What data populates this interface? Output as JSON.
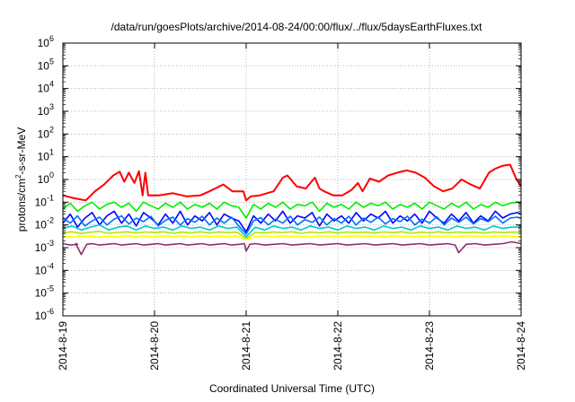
{
  "chart_data": {
    "type": "line",
    "title": "/data/run/goesPlots/archive/2014-08-24/00:00/flux/../flux/5daysEarthFluxes.txt",
    "xlabel": "Coordinated Universal Time (UTC)",
    "ylabel": {
      "pre": "protons/cm",
      "sup": "2",
      "post": "-s-sr-MeV"
    },
    "yscale": "log",
    "ylim": [
      1e-06,
      1000000.0
    ],
    "y_ticks": [
      {
        "exp": "-6"
      },
      {
        "exp": "-5"
      },
      {
        "exp": "-4"
      },
      {
        "exp": "-3"
      },
      {
        "exp": "-2"
      },
      {
        "exp": "-1"
      },
      {
        "exp": "0"
      },
      {
        "exp": "1"
      },
      {
        "exp": "2"
      },
      {
        "exp": "3"
      },
      {
        "exp": "4"
      },
      {
        "exp": "5"
      },
      {
        "exp": "6"
      }
    ],
    "tick_base": "10",
    "x_ticks": [
      "2014-8-19",
      "2014-8-20",
      "2014-8-21",
      "2014-8-22",
      "2014-8-23",
      "2014-8-24"
    ],
    "xlim": [
      "2014-08-19 00:00",
      "2014-08-24 00:00"
    ],
    "grid": true,
    "legend": "none",
    "series": [
      {
        "color": "#ff0000",
        "x_days": [
          0,
          0.12,
          0.25,
          0.35,
          0.45,
          0.55,
          0.62,
          0.67,
          0.72,
          0.78,
          0.83,
          0.87,
          0.9,
          0.93,
          0.97,
          1.05,
          1.2,
          1.35,
          1.5,
          1.6,
          1.75,
          1.85,
          1.97,
          2.0,
          2.05,
          2.15,
          2.3,
          2.4,
          2.45,
          2.55,
          2.65,
          2.75,
          2.8,
          2.85,
          2.95,
          3.05,
          3.15,
          3.22,
          3.27,
          3.35,
          3.45,
          3.55,
          3.65,
          3.75,
          3.85,
          3.95,
          4.05,
          4.15,
          4.25,
          4.35,
          4.45,
          4.55,
          4.65,
          4.72,
          4.8,
          4.88,
          4.95,
          5.0
        ],
        "y": [
          0.2,
          0.15,
          0.12,
          0.3,
          0.6,
          1.5,
          2.2,
          0.8,
          2.0,
          0.7,
          2.3,
          0.2,
          2.0,
          0.2,
          0.2,
          0.2,
          0.25,
          0.18,
          0.2,
          0.3,
          0.6,
          0.3,
          0.3,
          0.12,
          0.18,
          0.2,
          0.3,
          1.2,
          1.5,
          0.5,
          0.4,
          1.2,
          0.4,
          0.3,
          0.2,
          0.2,
          0.35,
          0.7,
          0.3,
          1.1,
          0.8,
          1.5,
          2.0,
          2.5,
          2.0,
          1.2,
          0.5,
          0.3,
          0.4,
          1.0,
          0.6,
          0.4,
          2.0,
          3.0,
          4.0,
          4.5,
          1.0,
          0.5
        ]
      },
      {
        "color": "#00ee00",
        "x_days": [
          0,
          0.08,
          0.16,
          0.24,
          0.32,
          0.4,
          0.48,
          0.56,
          0.64,
          0.72,
          0.8,
          0.88,
          0.96,
          1.04,
          1.12,
          1.2,
          1.28,
          1.36,
          1.44,
          1.52,
          1.6,
          1.68,
          1.76,
          1.84,
          1.92,
          2.0,
          2.08,
          2.16,
          2.24,
          2.32,
          2.4,
          2.48,
          2.56,
          2.64,
          2.72,
          2.8,
          2.88,
          2.96,
          3.04,
          3.12,
          3.2,
          3.28,
          3.36,
          3.44,
          3.52,
          3.6,
          3.68,
          3.76,
          3.84,
          3.92,
          4.0,
          4.08,
          4.16,
          4.24,
          4.32,
          4.4,
          4.48,
          4.56,
          4.64,
          4.72,
          4.8,
          4.88,
          4.96,
          5.0
        ],
        "y": [
          0.05,
          0.09,
          0.04,
          0.07,
          0.1,
          0.05,
          0.08,
          0.1,
          0.06,
          0.09,
          0.04,
          0.1,
          0.07,
          0.05,
          0.09,
          0.06,
          0.1,
          0.05,
          0.08,
          0.06,
          0.09,
          0.05,
          0.1,
          0.07,
          0.06,
          0.02,
          0.08,
          0.05,
          0.09,
          0.06,
          0.1,
          0.05,
          0.08,
          0.07,
          0.1,
          0.04,
          0.09,
          0.06,
          0.08,
          0.05,
          0.1,
          0.06,
          0.09,
          0.07,
          0.1,
          0.05,
          0.08,
          0.06,
          0.09,
          0.05,
          0.1,
          0.07,
          0.05,
          0.09,
          0.06,
          0.1,
          0.05,
          0.08,
          0.06,
          0.1,
          0.07,
          0.09,
          0.1,
          0.1
        ]
      },
      {
        "color": "#0000ff",
        "x_days": [
          0,
          0.08,
          0.16,
          0.24,
          0.32,
          0.4,
          0.48,
          0.56,
          0.64,
          0.72,
          0.8,
          0.88,
          0.96,
          1.04,
          1.12,
          1.2,
          1.28,
          1.36,
          1.44,
          1.52,
          1.6,
          1.68,
          1.76,
          1.84,
          1.92,
          2.0,
          2.08,
          2.16,
          2.24,
          2.32,
          2.4,
          2.48,
          2.56,
          2.64,
          2.72,
          2.8,
          2.88,
          2.96,
          3.04,
          3.12,
          3.2,
          3.28,
          3.36,
          3.44,
          3.52,
          3.6,
          3.68,
          3.76,
          3.84,
          3.92,
          4.0,
          4.08,
          4.16,
          4.24,
          4.32,
          4.4,
          4.48,
          4.56,
          4.64,
          4.72,
          4.8,
          4.88,
          4.96,
          5.0
        ],
        "y": [
          0.012,
          0.03,
          0.008,
          0.02,
          0.035,
          0.01,
          0.025,
          0.04,
          0.012,
          0.03,
          0.009,
          0.035,
          0.02,
          0.01,
          0.03,
          0.012,
          0.04,
          0.01,
          0.025,
          0.015,
          0.035,
          0.01,
          0.03,
          0.02,
          0.015,
          0.005,
          0.025,
          0.012,
          0.03,
          0.015,
          0.04,
          0.012,
          0.025,
          0.02,
          0.035,
          0.009,
          0.03,
          0.015,
          0.025,
          0.012,
          0.035,
          0.015,
          0.03,
          0.02,
          0.04,
          0.012,
          0.025,
          0.015,
          0.03,
          0.012,
          0.04,
          0.02,
          0.012,
          0.03,
          0.015,
          0.035,
          0.012,
          0.025,
          0.015,
          0.04,
          0.02,
          0.03,
          0.035,
          0.03
        ]
      },
      {
        "color": "#0070ff",
        "x_days": [
          0,
          0.08,
          0.16,
          0.24,
          0.32,
          0.4,
          0.48,
          0.56,
          0.64,
          0.72,
          0.8,
          0.88,
          0.96,
          1.04,
          1.12,
          1.2,
          1.28,
          1.36,
          1.44,
          1.52,
          1.6,
          1.68,
          1.76,
          1.84,
          1.92,
          2.0,
          2.08,
          2.16,
          2.24,
          2.32,
          2.4,
          2.48,
          2.56,
          2.64,
          2.72,
          2.8,
          2.88,
          2.96,
          3.04,
          3.12,
          3.2,
          3.28,
          3.36,
          3.44,
          3.52,
          3.6,
          3.68,
          3.76,
          3.84,
          3.92,
          4.0,
          4.08,
          4.16,
          4.24,
          4.32,
          4.4,
          4.48,
          4.56,
          4.64,
          4.72,
          4.8,
          4.88,
          4.96,
          5.0
        ],
        "y": [
          0.02,
          0.012,
          0.025,
          0.009,
          0.015,
          0.022,
          0.01,
          0.018,
          0.025,
          0.011,
          0.02,
          0.014,
          0.024,
          0.009,
          0.016,
          0.022,
          0.01,
          0.019,
          0.013,
          0.024,
          0.01,
          0.02,
          0.012,
          0.022,
          0.009,
          0.004,
          0.015,
          0.021,
          0.01,
          0.018,
          0.012,
          0.024,
          0.01,
          0.017,
          0.013,
          0.022,
          0.01,
          0.019,
          0.012,
          0.024,
          0.01,
          0.02,
          0.013,
          0.022,
          0.011,
          0.019,
          0.014,
          0.024,
          0.01,
          0.018,
          0.012,
          0.023,
          0.01,
          0.02,
          0.013,
          0.022,
          0.011,
          0.019,
          0.014,
          0.024,
          0.012,
          0.02,
          0.022,
          0.02
        ]
      },
      {
        "color": "#00c8c8",
        "x_days": [
          0,
          0.1,
          0.2,
          0.3,
          0.4,
          0.5,
          0.6,
          0.7,
          0.8,
          0.9,
          1.0,
          1.1,
          1.2,
          1.3,
          1.4,
          1.5,
          1.6,
          1.7,
          1.8,
          1.9,
          2.0,
          2.1,
          2.2,
          2.3,
          2.4,
          2.5,
          2.6,
          2.7,
          2.8,
          2.9,
          3.0,
          3.1,
          3.2,
          3.3,
          3.4,
          3.5,
          3.6,
          3.7,
          3.8,
          3.9,
          4.0,
          4.1,
          4.2,
          4.3,
          4.4,
          4.5,
          4.6,
          4.7,
          4.8,
          4.9,
          5.0
        ],
        "y": [
          0.007,
          0.009,
          0.006,
          0.008,
          0.01,
          0.006,
          0.008,
          0.009,
          0.006,
          0.009,
          0.007,
          0.008,
          0.006,
          0.009,
          0.007,
          0.008,
          0.006,
          0.009,
          0.007,
          0.008,
          0.003,
          0.008,
          0.006,
          0.009,
          0.007,
          0.008,
          0.006,
          0.009,
          0.007,
          0.008,
          0.006,
          0.009,
          0.007,
          0.008,
          0.006,
          0.009,
          0.007,
          0.008,
          0.006,
          0.009,
          0.007,
          0.008,
          0.006,
          0.009,
          0.007,
          0.008,
          0.006,
          0.009,
          0.007,
          0.008,
          0.008
        ]
      },
      {
        "color": "#b4e600",
        "x_days": [
          0,
          0.1,
          0.2,
          0.3,
          0.4,
          0.5,
          0.6,
          0.7,
          0.8,
          0.9,
          1.0,
          1.1,
          1.2,
          1.3,
          1.4,
          1.5,
          1.6,
          1.7,
          1.8,
          1.9,
          2.0,
          2.1,
          2.2,
          2.3,
          2.4,
          2.5,
          2.6,
          2.7,
          2.8,
          2.9,
          3.0,
          3.1,
          3.2,
          3.3,
          3.4,
          3.5,
          3.6,
          3.7,
          3.8,
          3.9,
          4.0,
          4.1,
          4.2,
          4.3,
          4.4,
          4.5,
          4.6,
          4.7,
          4.8,
          4.9,
          5.0
        ],
        "y": [
          0.0045,
          0.005,
          0.0042,
          0.0048,
          0.0052,
          0.0043,
          0.0047,
          0.005,
          0.0044,
          0.0049,
          0.0046,
          0.005,
          0.0043,
          0.0048,
          0.0045,
          0.005,
          0.0044,
          0.0049,
          0.0046,
          0.0048,
          0.0025,
          0.0047,
          0.0044,
          0.0049,
          0.0046,
          0.005,
          0.0043,
          0.0048,
          0.0045,
          0.005,
          0.0044,
          0.0049,
          0.0046,
          0.0048,
          0.0044,
          0.0049,
          0.0046,
          0.005,
          0.0043,
          0.0048,
          0.0045,
          0.005,
          0.0044,
          0.0049,
          0.0046,
          0.0048,
          0.0044,
          0.0049,
          0.0046,
          0.0048,
          0.0048
        ]
      },
      {
        "color": "#ffff00",
        "x_days": [
          0,
          0.1,
          0.2,
          0.3,
          0.4,
          0.5,
          0.6,
          0.7,
          0.8,
          0.9,
          1.0,
          1.1,
          1.2,
          1.3,
          1.4,
          1.5,
          1.6,
          1.7,
          1.8,
          1.9,
          2.0,
          2.1,
          2.2,
          2.3,
          2.4,
          2.5,
          2.6,
          2.7,
          2.8,
          2.9,
          3.0,
          3.1,
          3.2,
          3.3,
          3.4,
          3.5,
          3.6,
          3.7,
          3.8,
          3.9,
          4.0,
          4.1,
          4.2,
          4.3,
          4.4,
          4.5,
          4.6,
          4.7,
          4.8,
          4.9,
          5.0
        ],
        "y": [
          0.0032,
          0.003,
          0.0033,
          0.0031,
          0.0029,
          0.0032,
          0.003,
          0.0033,
          0.0031,
          0.0032,
          0.003,
          0.0033,
          0.0031,
          0.0032,
          0.003,
          0.0033,
          0.0031,
          0.0032,
          0.003,
          0.0033,
          0.0022,
          0.0031,
          0.0032,
          0.003,
          0.0033,
          0.0031,
          0.0032,
          0.003,
          0.0033,
          0.0031,
          0.0032,
          0.003,
          0.0033,
          0.0031,
          0.0032,
          0.003,
          0.0033,
          0.0031,
          0.0032,
          0.003,
          0.0033,
          0.0031,
          0.0032,
          0.003,
          0.0033,
          0.0031,
          0.0032,
          0.003,
          0.0033,
          0.0031,
          0.0031
        ]
      },
      {
        "color": "#8b2e6e",
        "x_days": [
          0,
          0.08,
          0.16,
          0.14,
          0.2,
          0.26,
          0.32,
          0.4,
          0.48,
          0.56,
          0.64,
          0.72,
          0.8,
          0.88,
          0.96,
          1.04,
          1.12,
          1.2,
          1.28,
          1.36,
          1.44,
          1.52,
          1.6,
          1.68,
          1.76,
          1.84,
          1.92,
          1.98,
          2.0,
          2.04,
          2.1,
          2.2,
          2.3,
          2.4,
          2.5,
          2.6,
          2.7,
          2.8,
          2.9,
          3.0,
          3.1,
          3.2,
          3.3,
          3.4,
          3.5,
          3.6,
          3.7,
          3.8,
          3.9,
          4.0,
          4.1,
          4.2,
          4.28,
          4.32,
          4.4,
          4.5,
          4.6,
          4.7,
          4.8,
          4.9,
          5.0
        ],
        "y": [
          0.0015,
          0.0013,
          0.0014,
          0.0015,
          0.0005,
          0.0014,
          0.0015,
          0.0013,
          0.0014,
          0.0015,
          0.0013,
          0.0014,
          0.0015,
          0.0013,
          0.0014,
          0.0015,
          0.0013,
          0.0014,
          0.0015,
          0.0013,
          0.0014,
          0.0015,
          0.0013,
          0.0014,
          0.0015,
          0.0013,
          0.0014,
          0.0015,
          0.0007,
          0.0014,
          0.0015,
          0.0013,
          0.0014,
          0.0015,
          0.0013,
          0.0014,
          0.0015,
          0.0013,
          0.0014,
          0.0015,
          0.0013,
          0.0014,
          0.0015,
          0.0013,
          0.0014,
          0.0015,
          0.0013,
          0.0014,
          0.0015,
          0.0013,
          0.0014,
          0.0015,
          0.0013,
          0.0006,
          0.0014,
          0.0015,
          0.0013,
          0.0014,
          0.0015,
          0.0018,
          0.0015
        ]
      }
    ]
  }
}
